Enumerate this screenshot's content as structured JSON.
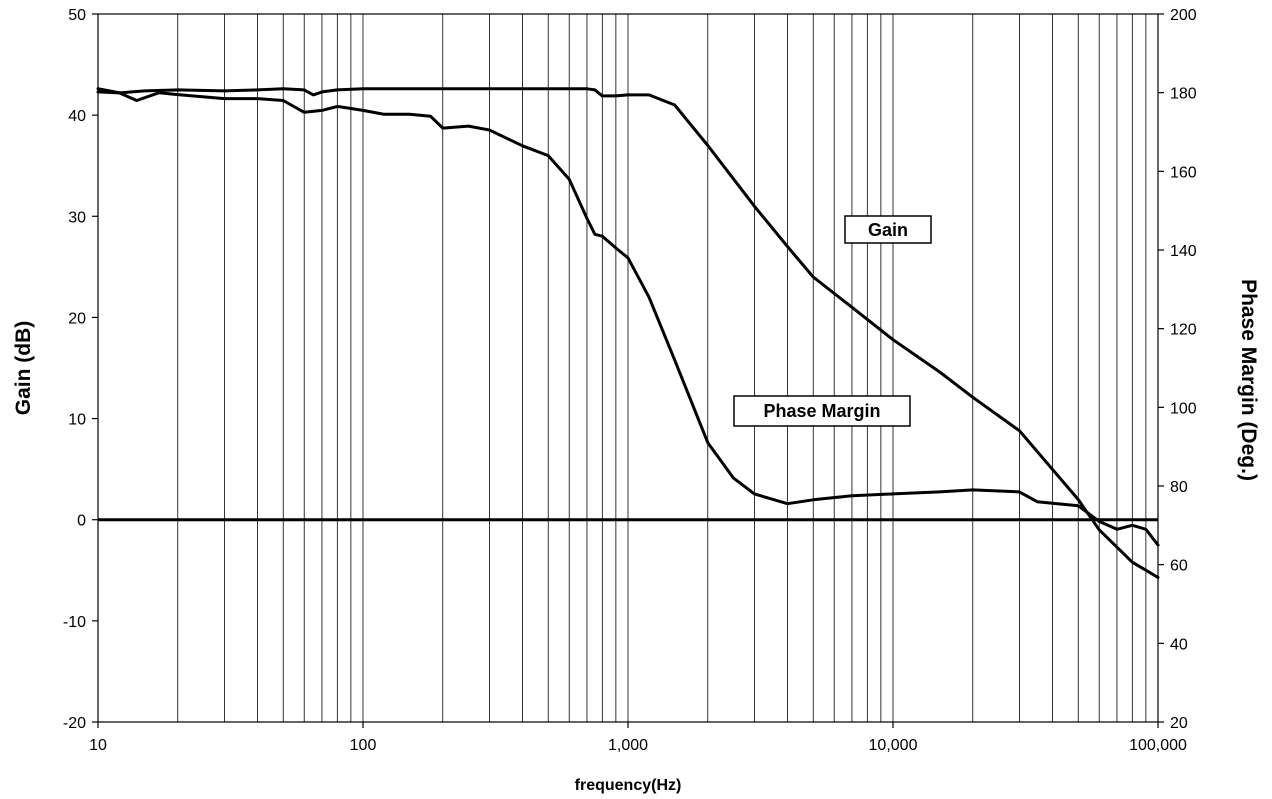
{
  "chart_data": {
    "type": "line",
    "xlabel": "frequency(Hz)",
    "ylabel": "Gain (dB)",
    "y2label": "Phase Margin (Deg.)",
    "x_scale": "log",
    "xlim": [
      10,
      100000
    ],
    "ylim": [
      -20,
      50
    ],
    "y2lim": [
      20,
      200
    ],
    "grid": "vertical log gridlines",
    "x_ticks": [
      "10",
      "100",
      "1,000",
      "10,000",
      "100,000"
    ],
    "y_ticks": [
      "-20",
      "-10",
      "0",
      "10",
      "20",
      "30",
      "40",
      "50"
    ],
    "y2_ticks": [
      "20",
      "40",
      "60",
      "80",
      "100",
      "120",
      "140",
      "160",
      "180",
      "200"
    ],
    "annotations": [
      "Gain",
      "Phase Margin"
    ],
    "series": [
      {
        "name": "Gain",
        "axis": "left",
        "x": [
          10,
          12,
          15,
          20,
          30,
          40,
          50,
          60,
          65,
          70,
          80,
          100,
          120,
          150,
          180,
          200,
          250,
          300,
          400,
          500,
          600,
          700,
          750,
          800,
          900,
          1000,
          1200,
          1500,
          2000,
          3000,
          4000,
          5000,
          7000,
          10000,
          15000,
          20000,
          30000,
          50000,
          60000,
          80000,
          100000
        ],
        "values": [
          42.3,
          42.2,
          42.4,
          42.5,
          42.4,
          42.5,
          42.6,
          42.5,
          42.0,
          42.3,
          42.5,
          42.6,
          42.6,
          42.6,
          42.6,
          42.6,
          42.6,
          42.6,
          42.6,
          42.6,
          42.6,
          42.6,
          42.5,
          41.9,
          41.9,
          42.0,
          42.0,
          41.0,
          37.0,
          31.0,
          27.0,
          24.0,
          21.0,
          17.8,
          14.6,
          12.1,
          8.8,
          2.0,
          -1.0,
          -4.2,
          -5.7
        ]
      },
      {
        "name": "Phase Margin",
        "axis": "right",
        "x": [
          10,
          12,
          14,
          17,
          20,
          30,
          40,
          50,
          60,
          70,
          80,
          100,
          120,
          150,
          180,
          200,
          250,
          300,
          400,
          500,
          600,
          700,
          750,
          800,
          900,
          1000,
          1200,
          1500,
          2000,
          2500,
          3000,
          4000,
          5000,
          7000,
          10000,
          15000,
          20000,
          30000,
          35000,
          50000,
          60000,
          70000,
          80000,
          90000,
          100000
        ],
        "values": [
          181.0,
          180.0,
          178.0,
          180.0,
          179.5,
          178.5,
          178.5,
          178.0,
          175.0,
          175.5,
          176.5,
          175.5,
          174.5,
          174.5,
          174.0,
          171.0,
          171.5,
          170.5,
          166.5,
          164.0,
          158.0,
          148.0,
          144.0,
          143.5,
          140.5,
          138.0,
          128.0,
          112.0,
          91.0,
          82.0,
          78.0,
          75.5,
          76.5,
          77.5,
          78.0,
          78.5,
          79.0,
          78.5,
          76.0,
          75.0,
          71.0,
          69.0,
          70.0,
          69.0,
          65.0
        ]
      }
    ]
  }
}
